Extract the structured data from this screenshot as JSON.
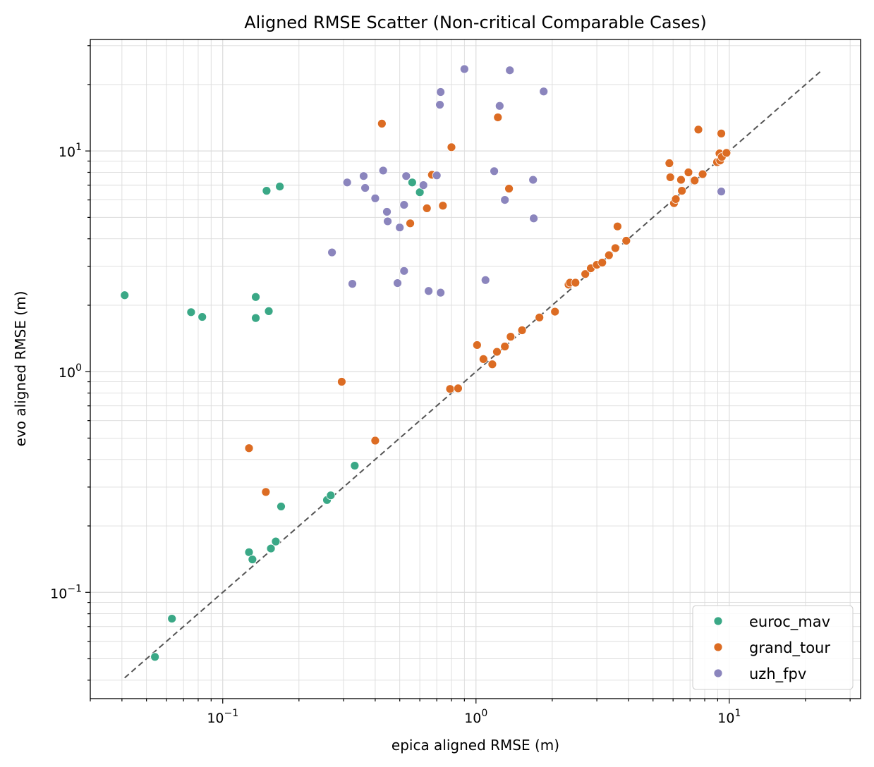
{
  "chart_data": {
    "type": "scatter",
    "title": "Aligned RMSE Scatter (Non-critical Comparable Cases)",
    "xlabel": "epica aligned RMSE (m)",
    "ylabel": "evo aligned RMSE (m)",
    "xscale": "log",
    "yscale": "log",
    "xlim": [
      0.03,
      33
    ],
    "ylim": [
      0.033,
      32
    ],
    "x_ticks": [
      {
        "value": 0.1,
        "base": "10",
        "exp": "−1"
      },
      {
        "value": 1,
        "base": "10",
        "exp": "0"
      },
      {
        "value": 10,
        "base": "10",
        "exp": "1"
      }
    ],
    "y_ticks": [
      {
        "value": 0.1,
        "base": "10",
        "exp": "−1"
      },
      {
        "value": 1,
        "base": "10",
        "exp": "0"
      },
      {
        "value": 10,
        "base": "10",
        "exp": "1"
      }
    ],
    "grid": true,
    "legend_position": "bottom-right",
    "reference_line": {
      "style": "dashed",
      "color": "#555555",
      "from": [
        0.041,
        0.041
      ],
      "to": [
        23,
        23
      ]
    },
    "series": [
      {
        "name": "euroc_mav",
        "color": "#3aa886",
        "points": [
          [
            0.041,
            2.22
          ],
          [
            0.054,
            0.051
          ],
          [
            0.063,
            0.076
          ],
          [
            0.075,
            1.86
          ],
          [
            0.083,
            1.77
          ],
          [
            0.127,
            0.152
          ],
          [
            0.131,
            0.141
          ],
          [
            0.135,
            1.75
          ],
          [
            0.135,
            2.18
          ],
          [
            0.149,
            6.6
          ],
          [
            0.152,
            1.88
          ],
          [
            0.155,
            0.158
          ],
          [
            0.162,
            0.17
          ],
          [
            0.168,
            6.9
          ],
          [
            0.17,
            0.245
          ],
          [
            0.258,
            0.262
          ],
          [
            0.267,
            0.275
          ],
          [
            0.332,
            0.375
          ],
          [
            0.56,
            7.2
          ],
          [
            0.6,
            6.5
          ]
        ]
      },
      {
        "name": "grand_tour",
        "color": "#dc6c23",
        "points": [
          [
            0.127,
            0.45
          ],
          [
            0.148,
            0.285
          ],
          [
            0.295,
            0.9
          ],
          [
            0.4,
            0.487
          ],
          [
            0.425,
            13.3
          ],
          [
            0.55,
            4.7
          ],
          [
            0.64,
            5.5
          ],
          [
            0.67,
            7.8
          ],
          [
            0.74,
            5.65
          ],
          [
            0.79,
            0.835
          ],
          [
            0.8,
            10.4
          ],
          [
            0.85,
            0.84
          ],
          [
            1.01,
            1.32
          ],
          [
            1.07,
            1.14
          ],
          [
            1.16,
            1.08
          ],
          [
            1.21,
            1.23
          ],
          [
            1.22,
            14.2
          ],
          [
            1.3,
            1.3
          ],
          [
            1.35,
            6.75
          ],
          [
            1.37,
            1.44
          ],
          [
            1.52,
            1.54
          ],
          [
            1.78,
            1.76
          ],
          [
            2.05,
            1.87
          ],
          [
            2.32,
            2.48
          ],
          [
            2.35,
            2.53
          ],
          [
            2.47,
            2.53
          ],
          [
            2.7,
            2.77
          ],
          [
            2.84,
            2.94
          ],
          [
            3.0,
            3.05
          ],
          [
            3.15,
            3.12
          ],
          [
            3.35,
            3.37
          ],
          [
            3.55,
            3.63
          ],
          [
            3.62,
            4.55
          ],
          [
            3.92,
            3.92
          ],
          [
            5.8,
            8.8
          ],
          [
            5.85,
            7.6
          ],
          [
            6.05,
            5.8
          ],
          [
            6.15,
            6.05
          ],
          [
            6.45,
            7.4
          ],
          [
            6.5,
            6.6
          ],
          [
            6.9,
            8.0
          ],
          [
            7.3,
            7.35
          ],
          [
            7.55,
            12.5
          ],
          [
            7.85,
            7.85
          ],
          [
            8.95,
            8.9
          ],
          [
            9.15,
            9.75
          ],
          [
            9.2,
            9.05
          ],
          [
            9.3,
            12.0
          ],
          [
            9.35,
            9.4
          ],
          [
            9.75,
            9.8
          ]
        ]
      },
      {
        "name": "uzh_fpv",
        "color": "#8b85bd",
        "points": [
          [
            0.27,
            3.47
          ],
          [
            0.31,
            7.2
          ],
          [
            0.325,
            2.5
          ],
          [
            0.36,
            7.7
          ],
          [
            0.365,
            6.8
          ],
          [
            0.4,
            6.1
          ],
          [
            0.43,
            8.15
          ],
          [
            0.445,
            5.3
          ],
          [
            0.448,
            4.8
          ],
          [
            0.49,
            2.52
          ],
          [
            0.5,
            4.5
          ],
          [
            0.52,
            2.86
          ],
          [
            0.52,
            5.7
          ],
          [
            0.53,
            7.7
          ],
          [
            0.62,
            7.0
          ],
          [
            0.65,
            2.32
          ],
          [
            0.7,
            7.75
          ],
          [
            0.72,
            16.2
          ],
          [
            0.725,
            18.5
          ],
          [
            0.725,
            2.28
          ],
          [
            0.9,
            23.5
          ],
          [
            1.09,
            2.6
          ],
          [
            1.18,
            8.1
          ],
          [
            1.24,
            16.0
          ],
          [
            1.3,
            6.0
          ],
          [
            1.36,
            23.2
          ],
          [
            1.68,
            7.4
          ],
          [
            1.69,
            4.95
          ],
          [
            1.85,
            18.6
          ],
          [
            9.3,
            6.55
          ]
        ]
      }
    ]
  }
}
